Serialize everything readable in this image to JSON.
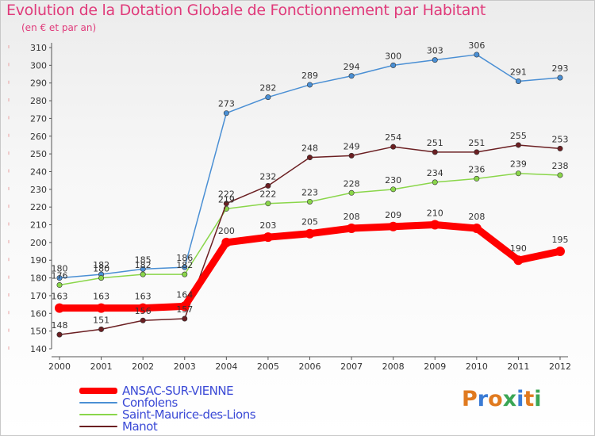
{
  "title": "Evolution de la Dotation Globale de Fonctionnement par Habitant",
  "subtitle": "(en € et par an)",
  "logo": {
    "text": "Proxiti",
    "colors": [
      "#e07a1f",
      "#3a7bd5",
      "#e07a1f",
      "#3aa655",
      "#3a7bd5",
      "#e07a1f",
      "#3aa655"
    ]
  },
  "chart_data": {
    "type": "line",
    "title": "Evolution de la Dotation Globale de Fonctionnement par Habitant",
    "subtitle": "(en € et par an)",
    "xlabel": "",
    "ylabel": "",
    "x": [
      "2000",
      "2001",
      "2002",
      "2003",
      "2004",
      "2005",
      "2006",
      "2007",
      "2008",
      "2009",
      "2010",
      "2011",
      "2012"
    ],
    "ylim": [
      140,
      310
    ],
    "yticks": [
      140,
      150,
      160,
      170,
      180,
      190,
      200,
      210,
      220,
      230,
      240,
      250,
      260,
      270,
      280,
      290,
      300,
      310
    ],
    "grid": false,
    "legend_position": "bottom-left",
    "series": [
      {
        "name": "ANSAC-SUR-VIENNE",
        "color": "#ff0000",
        "emphasis": true,
        "values": [
          163,
          163,
          163,
          164,
          200,
          203,
          205,
          208,
          209,
          210,
          208,
          190,
          195
        ]
      },
      {
        "name": "Confolens",
        "color": "#4a8fd4",
        "emphasis": false,
        "values": [
          180,
          182,
          185,
          186,
          273,
          282,
          289,
          294,
          300,
          303,
          306,
          291,
          293
        ]
      },
      {
        "name": "Saint-Maurice-des-Lions",
        "color": "#8ad64a",
        "emphasis": false,
        "values": [
          176,
          180,
          182,
          182,
          219,
          222,
          223,
          228,
          230,
          234,
          236,
          239,
          238
        ]
      },
      {
        "name": "Manot",
        "color": "#6b1f22",
        "emphasis": false,
        "values": [
          148,
          151,
          156,
          157,
          222,
          232,
          248,
          249,
          254,
          251,
          251,
          255,
          253
        ]
      }
    ]
  }
}
